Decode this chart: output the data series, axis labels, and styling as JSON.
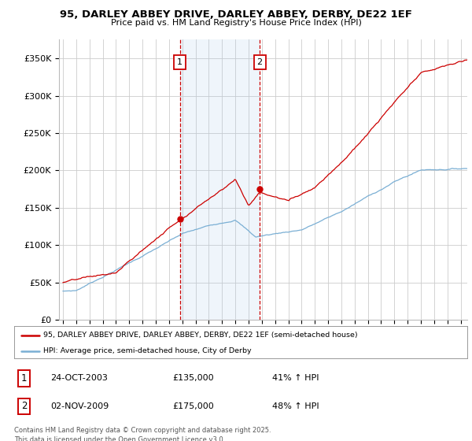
{
  "title": "95, DARLEY ABBEY DRIVE, DARLEY ABBEY, DERBY, DE22 1EF",
  "subtitle": "Price paid vs. HM Land Registry's House Price Index (HPI)",
  "legend_line1": "95, DARLEY ABBEY DRIVE, DARLEY ABBEY, DERBY, DE22 1EF (semi-detached house)",
  "legend_line2": "HPI: Average price, semi-detached house, City of Derby",
  "transaction1_date": "24-OCT-2003",
  "transaction1_price": "£135,000",
  "transaction1_hpi": "41% ↑ HPI",
  "transaction1_year": 2003.82,
  "transaction1_value": 135000,
  "transaction2_date": "02-NOV-2009",
  "transaction2_price": "£175,000",
  "transaction2_hpi": "48% ↑ HPI",
  "transaction2_year": 2009.84,
  "transaction2_value": 175000,
  "background_color": "#ffffff",
  "grid_color": "#cccccc",
  "red_line_color": "#cc0000",
  "blue_line_color": "#7aafd4",
  "shade_color": "#ddeeff",
  "marker_box_color": "#cc0000",
  "footer": "Contains HM Land Registry data © Crown copyright and database right 2025.\nThis data is licensed under the Open Government Licence v3.0.",
  "ylim": [
    0,
    375000
  ],
  "xlim": [
    1994.7,
    2025.5
  ],
  "yticks": [
    0,
    50000,
    100000,
    150000,
    200000,
    250000,
    300000,
    350000
  ],
  "yticklabels": [
    "£0",
    "£50K",
    "£100K",
    "£150K",
    "£200K",
    "£250K",
    "£300K",
    "£350K"
  ]
}
